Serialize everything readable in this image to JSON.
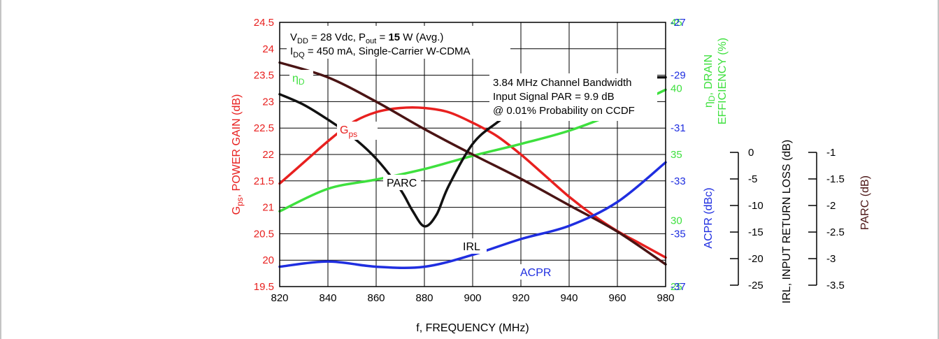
{
  "chart_data": {
    "type": "line",
    "x": [
      820,
      840,
      860,
      880,
      900,
      920,
      940,
      960,
      980
    ],
    "xlabel": "f, FREQUENCY (MHz)",
    "xlim": [
      820,
      980
    ],
    "x_ticks": [
      "820",
      "840",
      "860",
      "880",
      "900",
      "920",
      "940",
      "960",
      "980"
    ],
    "grid": true,
    "colors": {
      "gps": "#e8201f",
      "eff": "#3ee03e",
      "acpr": "#1f2ee0",
      "irl": "#111111",
      "parc": "#4a1414"
    },
    "axes": {
      "left": {
        "label_main": "G",
        "label_sub": "ps",
        "label_rest": ", POWER GAIN (dB)",
        "lim": [
          19.5,
          24.5
        ],
        "ticks": [
          "24.5",
          "24",
          "23.5",
          "23",
          "22.5",
          "22",
          "21.5",
          "21",
          "20.5",
          "20",
          "19.5"
        ]
      },
      "right_eff": {
        "label_line1_main": "η",
        "label_line1_sub": "D",
        "label_line1_rest": ", DRAIN",
        "label_line2": "EFFICIENCY (%)",
        "lim": [
          25,
          45
        ],
        "ticks": [
          "45",
          "40",
          "35",
          "30",
          "25"
        ]
      },
      "right_acpr": {
        "label": "ACPR (dBc)",
        "lim": [
          -37,
          -27
        ],
        "ticks": [
          "-27",
          "-29",
          "-31",
          "-33",
          "-35",
          "-37"
        ]
      },
      "irl": {
        "label": "IRL, INPUT RETURN LOSS (dB)",
        "lim": [
          -25,
          0
        ],
        "ticks": [
          "0",
          "-5",
          "-10",
          "-15",
          "-20",
          "-25"
        ]
      },
      "parc": {
        "label": "PARC (dB)",
        "lim": [
          -3.5,
          -1
        ],
        "ticks": [
          "-1",
          "-1.5",
          "-2",
          "-2.5",
          "-3",
          "-3.5"
        ]
      }
    },
    "annotations": {
      "conditions": {
        "l1_a": "V",
        "l1_a_sub": "DD",
        "l1_b": " = 28 Vdc, P",
        "l1_b_sub": "out",
        "l1_c": " = ",
        "l1_bold": "15",
        "l1_d": " W (Avg.)",
        "l2_a": "I",
        "l2_a_sub": "DQ",
        "l2_b": " = 450 mA, Single-Carrier W-CDMA"
      },
      "signal": [
        "3.84 MHz Channel Bandwidth",
        "Input Signal PAR = 9.9 dB",
        "@ 0.01% Probability on CCDF"
      ],
      "labels": {
        "eff_main": "η",
        "eff_sub": "D",
        "gps_main": "G",
        "gps_sub": "ps",
        "parc": "PARC",
        "irl": "IRL",
        "acpr": "ACPR"
      }
    },
    "series": [
      {
        "name": "Gps",
        "axis": "left",
        "x": [
          820,
          830,
          840,
          850,
          860,
          870,
          880,
          890,
          900,
          910,
          920,
          930,
          940,
          950,
          960,
          970,
          980
        ],
        "values": [
          21.45,
          21.85,
          22.25,
          22.6,
          22.8,
          22.88,
          22.88,
          22.8,
          22.6,
          22.35,
          22.0,
          21.6,
          21.2,
          20.85,
          20.55,
          20.3,
          20.05
        ]
      },
      {
        "name": "ηD",
        "axis": "right_eff",
        "x": [
          820,
          840,
          860,
          880,
          900,
          920,
          940,
          960,
          980
        ],
        "values": [
          30.7,
          32.4,
          33.1,
          33.9,
          34.9,
          35.8,
          36.8,
          38.2,
          39.9
        ]
      },
      {
        "name": "PARC",
        "axis": "parc",
        "x": [
          820,
          840,
          860,
          880,
          900,
          920,
          940,
          960,
          980
        ],
        "values": [
          -1.38,
          -1.52,
          -1.75,
          -2.01,
          -2.25,
          -2.48,
          -2.73,
          -2.98,
          -3.29
        ]
      },
      {
        "name": "IRL",
        "axis": "irl",
        "x": [
          820,
          830,
          840,
          850,
          860,
          870,
          875,
          880,
          885,
          890,
          900,
          910,
          920,
          930,
          940,
          960,
          980
        ],
        "values": [
          -6.8,
          -7.8,
          -9.2,
          -10.8,
          -12.9,
          -15.8,
          -17.8,
          -19.3,
          -18.2,
          -15.5,
          -11.5,
          -9.5,
          -8.0,
          -7.0,
          -6.2,
          -5.3,
          -5.2
        ]
      },
      {
        "name": "ACPR",
        "axis": "right_acpr",
        "x": [
          820,
          840,
          860,
          880,
          900,
          920,
          940,
          960,
          980
        ],
        "values": [
          -36.25,
          -36.05,
          -36.25,
          -36.25,
          -35.8,
          -35.2,
          -34.7,
          -33.8,
          -32.3
        ]
      }
    ]
  }
}
